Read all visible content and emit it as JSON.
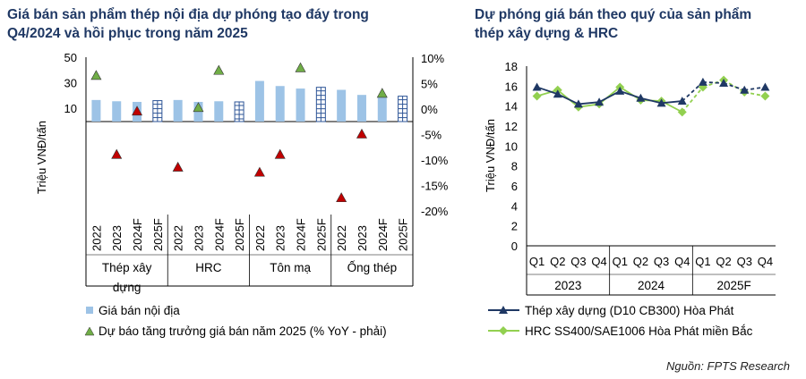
{
  "left_chart": {
    "title_line1": "Giá bán sản phẩm thép nội địa dự phóng tạo đáy trong",
    "title_line2": "Q4/2024 và hồi phục trong năm 2025",
    "ylabel": "Triệu VNĐ/tấn",
    "left_ticks": [
      "50",
      "30",
      "10"
    ],
    "right_ticks": [
      "10%",
      "5%",
      "0%",
      "-5%",
      "-10%",
      "-15%",
      "-20%"
    ],
    "legend_bar": "Giá bán nội địa",
    "legend_marker": "Dự báo tăng trưởng giá bán năm 2025 (% YoY - phải)"
  },
  "right_chart": {
    "title_line1": "Dự phóng giá bán theo quý của sản phẩm",
    "title_line2": "thép xây dựng & HRC",
    "ylabel": "Triệu VNĐ/tấn",
    "yticks": [
      "18",
      "16",
      "14",
      "12",
      "10",
      "8",
      "6",
      "4",
      "2",
      "0"
    ]
  },
  "source": "Nguồn: FPTS Research",
  "colors": {
    "bar": "#9dc3e6",
    "up_marker": "#70ad47",
    "down_marker": "#c00000",
    "series1": "#1f3864",
    "series2": "#92d050",
    "title": "#1f3864"
  },
  "chart_data": [
    {
      "type": "bar",
      "groups": [
        "Thép xây dựng",
        "HRC",
        "Tôn mạ",
        "Ống thép"
      ],
      "categories": [
        "2022",
        "2023",
        "2024F",
        "2025F"
      ],
      "series": [
        {
          "name": "Giá bán nội địa",
          "axis": "left",
          "values": [
            [
              17,
              16,
              15.5,
              16.5
            ],
            [
              17,
              15.5,
              16,
              15.5
            ],
            [
              32,
              28,
              26,
              27
            ],
            [
              25,
              21,
              20,
              20
            ]
          ]
        },
        {
          "name": "Dự báo tăng trưởng giá bán năm 2025 (% YoY - phải)",
          "axis": "right",
          "type": "scatter",
          "values": [
            [
              6.5,
              -9,
              -0.5,
              null
            ],
            [
              -11.5,
              0.2,
              7.5,
              null
            ],
            [
              -12.5,
              -9,
              8,
              null
            ],
            [
              -17.5,
              -5,
              3,
              null
            ]
          ]
        }
      ],
      "ylim_left": [
        -70,
        50
      ],
      "ylim_right": [
        -20,
        10
      ]
    },
    {
      "type": "line",
      "groups": [
        "2023",
        "2024",
        "2025F"
      ],
      "categories": [
        "Q1",
        "Q2",
        "Q3",
        "Q4",
        "Q1",
        "Q2",
        "Q3",
        "Q4",
        "Q1",
        "Q2",
        "Q3",
        "Q4"
      ],
      "series": [
        {
          "name": "Thép xây dựng (D10 CB300) Hòa Phát",
          "values": [
            15.9,
            15.2,
            14.2,
            14.4,
            15.5,
            14.8,
            14.3,
            14.5,
            16.4,
            16.3,
            15.6,
            15.9
          ]
        },
        {
          "name": "HRC SS400/SAE1006 Hòa Phát miền Bắc",
          "values": [
            15.0,
            15.6,
            13.9,
            14.2,
            15.9,
            14.6,
            14.5,
            13.4,
            15.9,
            16.6,
            15.4,
            15.0
          ]
        }
      ],
      "ylim": [
        0,
        18
      ]
    }
  ]
}
